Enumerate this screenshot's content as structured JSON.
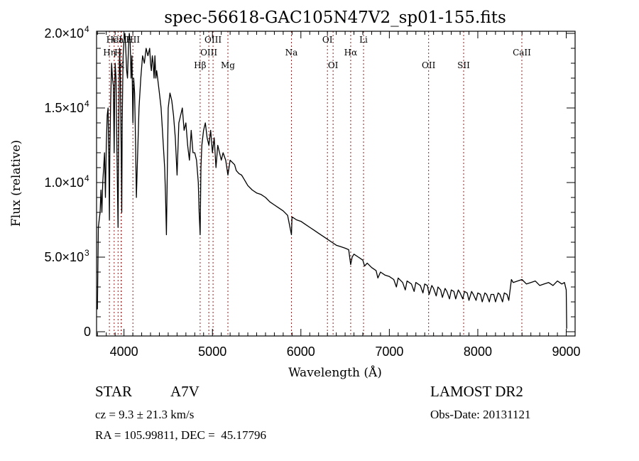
{
  "chart_data": {
    "type": "line",
    "title": "spec-56618-GAC105N47V2_sp01-155.fits",
    "xlabel": "Wavelength (Å)",
    "ylabel": "Flux (relative)",
    "xlim": [
      3690,
      9100
    ],
    "ylim": [
      0,
      20000
    ],
    "grid": false,
    "x_ticks": [
      4000,
      5000,
      6000,
      7000,
      8000,
      9000
    ],
    "x_tick_labels": [
      "4000",
      "5000",
      "6000",
      "7000",
      "8000",
      "9000"
    ],
    "y_ticks": [
      0,
      5000,
      10000,
      15000,
      20000
    ],
    "y_tick_labels": [
      {
        "mantissa": "0",
        "exp": ""
      },
      {
        "mantissa": "5.0×10",
        "exp": "3"
      },
      {
        "mantissa": "1.0×10",
        "exp": "4"
      },
      {
        "mantissa": "1.5×10",
        "exp": "4"
      },
      {
        "mantissa": "2.0×10",
        "exp": "4"
      }
    ],
    "spectral_lines": [
      {
        "label": "Hη",
        "wavelength": 3835,
        "row": 1
      },
      {
        "label": "HeI",
        "wavelength": 3889,
        "row": 0
      },
      {
        "label": "H",
        "wavelength": 3933,
        "row": 1
      },
      {
        "label": "K",
        "wavelength": 3968,
        "row": 2
      },
      {
        "label": "CaII",
        "wavelength": 3970,
        "row": 0
      },
      {
        "label": "HII",
        "wavelength": 4101,
        "row": 0
      },
      {
        "label": "Hβ",
        "wavelength": 4861,
        "row": 2
      },
      {
        "label": "OIII",
        "wavelength": 4959,
        "row": 1
      },
      {
        "label": "OIII",
        "wavelength": 5007,
        "row": 0
      },
      {
        "label": "Mg",
        "wavelength": 5175,
        "row": 2
      },
      {
        "label": "Na",
        "wavelength": 5893,
        "row": 1
      },
      {
        "label": "OI",
        "wavelength": 6300,
        "row": 0
      },
      {
        "label": "OI",
        "wavelength": 6364,
        "row": 2
      },
      {
        "label": "Hα",
        "wavelength": 6563,
        "row": 1
      },
      {
        "label": "Li",
        "wavelength": 6708,
        "row": 0
      },
      {
        "label": "OII",
        "wavelength": 7444,
        "row": 2
      },
      {
        "label": "SII",
        "wavelength": 7840,
        "row": 2
      },
      {
        "label": "CaII",
        "wavelength": 8498,
        "row": 1
      }
    ],
    "series": [
      {
        "name": "flux",
        "x": [
          3700,
          3710,
          3720,
          3730,
          3740,
          3750,
          3760,
          3770,
          3780,
          3790,
          3800,
          3810,
          3820,
          3830,
          3835,
          3840,
          3850,
          3860,
          3870,
          3880,
          3889,
          3895,
          3900,
          3910,
          3920,
          3933,
          3940,
          3950,
          3960,
          3970,
          3975,
          3980,
          3990,
          4000,
          4010,
          4020,
          4030,
          4040,
          4050,
          4060,
          4070,
          4080,
          4090,
          4101,
          4110,
          4120,
          4130,
          4140,
          4150,
          4170,
          4190,
          4210,
          4230,
          4250,
          4270,
          4290,
          4300,
          4310,
          4320,
          4330,
          4340,
          4350,
          4360,
          4370,
          4380,
          4400,
          4420,
          4440,
          4460,
          4470,
          4480,
          4500,
          4520,
          4540,
          4560,
          4580,
          4600,
          4620,
          4640,
          4660,
          4680,
          4700,
          4720,
          4740,
          4760,
          4780,
          4800,
          4820,
          4840,
          4850,
          4861,
          4870,
          4880,
          4900,
          4920,
          4940,
          4960,
          4980,
          5000,
          5020,
          5040,
          5060,
          5080,
          5100,
          5120,
          5150,
          5175,
          5200,
          5250,
          5270,
          5300,
          5330,
          5360,
          5400,
          5450,
          5500,
          5550,
          5600,
          5650,
          5700,
          5750,
          5800,
          5850,
          5893,
          5900,
          5950,
          6000,
          6050,
          6100,
          6150,
          6200,
          6250,
          6300,
          6350,
          6400,
          6450,
          6500,
          6540,
          6563,
          6580,
          6600,
          6650,
          6700,
          6720,
          6750,
          6800,
          6850,
          6870,
          6900,
          6950,
          7000,
          7050,
          7080,
          7100,
          7150,
          7180,
          7200,
          7250,
          7280,
          7300,
          7350,
          7380,
          7400,
          7430,
          7450,
          7480,
          7500,
          7530,
          7550,
          7580,
          7600,
          7630,
          7650,
          7680,
          7700,
          7730,
          7750,
          7780,
          7800,
          7830,
          7850,
          7880,
          7900,
          7930,
          7950,
          7980,
          8000,
          8030,
          8050,
          8080,
          8100,
          8130,
          8150,
          8180,
          8200,
          8230,
          8250,
          8280,
          8300,
          8330,
          8350,
          8380,
          8400,
          8450,
          8500,
          8550,
          8600,
          8650,
          8700,
          8750,
          8800,
          8850,
          8900,
          8950,
          8980,
          9000,
          9005
        ],
        "y": [
          1500,
          7000,
          7500,
          8000,
          9500,
          8000,
          10000,
          11000,
          12000,
          9000,
          12500,
          14500,
          15000,
          11000,
          7500,
          12000,
          15500,
          18000,
          17000,
          16500,
          12000,
          16000,
          18000,
          17000,
          12000,
          7000,
          13000,
          19000,
          17000,
          11000,
          8000,
          14000,
          18500,
          19500,
          20000,
          19000,
          17500,
          17000,
          19000,
          20000,
          19500,
          17000,
          18500,
          14000,
          17000,
          16000,
          13000,
          9000,
          11000,
          15000,
          17000,
          18500,
          18000,
          19000,
          18500,
          19000,
          18000,
          17500,
          18500,
          18000,
          17000,
          18500,
          17000,
          17500,
          17000,
          16000,
          15000,
          13000,
          11000,
          9000,
          6500,
          15000,
          16000,
          15500,
          14500,
          13000,
          10500,
          14000,
          14500,
          15000,
          13500,
          14000,
          12500,
          11500,
          13500,
          12000,
          12000,
          11500,
          10000,
          8000,
          6500,
          11000,
          12500,
          13500,
          14000,
          13000,
          12500,
          13500,
          12000,
          13000,
          11000,
          12500,
          12000,
          11500,
          12000,
          11500,
          10500,
          11500,
          11200,
          10800,
          10600,
          10500,
          10200,
          9800,
          9500,
          9300,
          9200,
          9000,
          8700,
          8500,
          8300,
          8100,
          7800,
          6500,
          7700,
          7500,
          7400,
          7200,
          7000,
          6800,
          6600,
          6400,
          6200,
          6000,
          5800,
          5700,
          5600,
          5500,
          4500,
          5000,
          5200,
          5000,
          4800,
          4400,
          4600,
          4300,
          4100,
          3600,
          4000,
          3800,
          3700,
          3500,
          3000,
          3600,
          3300,
          2800,
          3400,
          3200,
          2700,
          3300,
          3100,
          2600,
          3200,
          3100,
          2500,
          3100,
          2900,
          2400,
          3000,
          2800,
          2300,
          2900,
          2700,
          2200,
          2800,
          2700,
          2200,
          2800,
          2600,
          2200,
          2700,
          2600,
          2100,
          2700,
          2500,
          2100,
          2600,
          2500,
          2000,
          2600,
          2500,
          2000,
          2500,
          2500,
          2000,
          2600,
          2500,
          2000,
          2600,
          2500,
          2100,
          3500,
          3300,
          3400,
          3500,
          3200,
          3300,
          3400,
          3100,
          3200,
          3300,
          3100,
          3400,
          3200,
          3300,
          2800,
          200
        ],
        "description": "LAMOST stellar spectrum: steep rise and deep Balmer/Ca absorption lines below 4300 Å, peak near 2.0×10^4, smooth decline to ~3.5×10^3 by 8500 Å with periodic fringing dips beyond 6800 Å, drops to 0 at ~9000 Å"
      }
    ]
  },
  "info": {
    "object_class": "STAR",
    "subclass": "A7V",
    "redshift": "cz = 9.3 ± 21.3 km/s",
    "coords": "RA = 105.99811, DEC =  45.17796",
    "survey": "LAMOST DR2",
    "obs_date": "Obs-Date: 20131121"
  }
}
